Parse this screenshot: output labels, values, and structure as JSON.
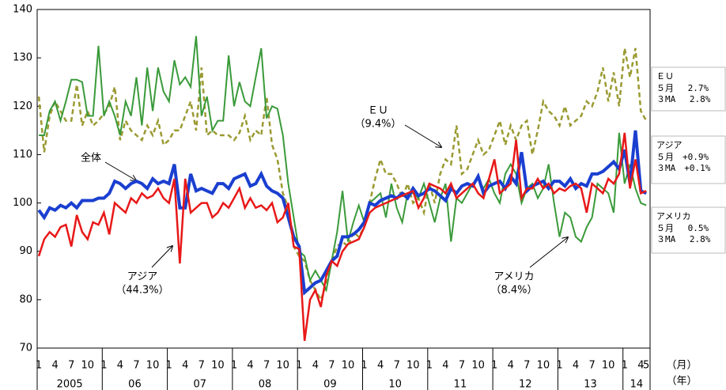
{
  "chart_data": {
    "type": "line",
    "categories": [
      "1",
      null,
      null,
      "4",
      null,
      null,
      "7",
      null,
      null,
      "10",
      null,
      null,
      "1",
      null,
      null,
      "4",
      null,
      null,
      "7",
      null,
      null,
      "10",
      null,
      null,
      "1",
      null,
      null,
      "4",
      null,
      null,
      "7",
      null,
      null,
      "10",
      null,
      null,
      "1",
      null,
      null,
      "4",
      null,
      null,
      "7",
      null,
      null,
      "10",
      null,
      null,
      "1",
      null,
      null,
      "4",
      null,
      null,
      "7",
      null,
      null,
      "10",
      null,
      null,
      "1",
      null,
      null,
      "4",
      null,
      null,
      "7",
      null,
      null,
      "10",
      null,
      null,
      "1",
      null,
      null,
      "4",
      null,
      null,
      "7",
      null,
      null,
      "10",
      null,
      null,
      "1",
      null,
      null,
      "4",
      null,
      null,
      "7",
      null,
      null,
      "10",
      null,
      null,
      "1",
      null,
      null,
      "4",
      null,
      null,
      "7",
      null,
      null,
      "10",
      null,
      null,
      "1",
      null,
      null,
      "4",
      "5"
    ],
    "years": [
      {
        "label": "2005",
        "months": 12
      },
      {
        "label": "06",
        "months": 12
      },
      {
        "label": "07",
        "months": 12
      },
      {
        "label": "08",
        "months": 12
      },
      {
        "label": "09",
        "months": 12
      },
      {
        "label": "10",
        "months": 12
      },
      {
        "label": "11",
        "months": 12
      },
      {
        "label": "12",
        "months": 12
      },
      {
        "label": "13",
        "months": 12
      },
      {
        "label": "14",
        "months": 5
      }
    ],
    "x_unit_month": "（月）",
    "x_unit_year": "（年）",
    "ylim": [
      70,
      140
    ],
    "yticks": [
      70,
      80,
      90,
      100,
      110,
      120,
      130,
      140
    ],
    "series": [
      {
        "name": "ＥＵ",
        "color": "#9a9a32",
        "dash": true,
        "width": 2.5,
        "values": [
          122,
          110.5,
          118,
          121,
          119,
          117,
          117,
          124.5,
          116,
          119,
          116,
          117,
          118.5,
          120,
          124,
          113,
          117,
          115,
          114,
          113,
          116,
          114,
          117,
          112,
          113,
          115,
          115,
          118,
          121,
          115,
          128,
          114,
          115,
          114,
          114,
          114,
          113,
          114.5,
          118,
          113,
          115,
          114,
          122,
          112,
          109,
          102,
          99,
          91,
          89,
          88,
          84,
          82,
          80,
          83,
          88,
          91,
          92,
          91,
          94,
          93,
          95,
          100,
          105,
          109,
          106,
          106,
          104,
          101,
          104,
          100,
          101,
          98,
          104,
          100,
          106,
          109,
          108,
          116,
          106,
          107,
          110,
          113,
          110,
          111,
          114,
          117,
          112,
          116,
          113,
          116,
          117,
          110,
          115,
          121,
          119,
          118,
          116,
          120,
          116,
          117,
          118,
          121,
          120,
          123,
          128,
          121,
          127,
          120,
          132,
          126,
          132,
          119,
          117
        ]
      },
      {
        "name": "アメリカ",
        "color": "#3a9a3a",
        "dash": false,
        "width": 2,
        "values": [
          114,
          114,
          119,
          121,
          117,
          121,
          125.5,
          125.5,
          125,
          118,
          118,
          132.5,
          118,
          121,
          118,
          114,
          121,
          118,
          126,
          116,
          128,
          119,
          128,
          123,
          121,
          129.5,
          124.5,
          126,
          124,
          134.5,
          118,
          122,
          115,
          117,
          117,
          130.5,
          120,
          125,
          121,
          120,
          126,
          132,
          117.5,
          120,
          119.5,
          114,
          104,
          97,
          90,
          89,
          84,
          86,
          84,
          82,
          88,
          94,
          102.5,
          92,
          96,
          99.5,
          96,
          100,
          101,
          102,
          97,
          104,
          99,
          96,
          102,
          102,
          101,
          104,
          100,
          96,
          101,
          104,
          92,
          101,
          100,
          102,
          104,
          105,
          103,
          105,
          102,
          100,
          106,
          108,
          106,
          100,
          103,
          104,
          101,
          103,
          108,
          100,
          93,
          98,
          97,
          93,
          92,
          95,
          97,
          104,
          103,
          102,
          98,
          114.5,
          104,
          108,
          103,
          100,
          99.5
        ]
      },
      {
        "name": "全体",
        "color": "#1a3fd0",
        "dash": false,
        "width": 4,
        "values": [
          98.5,
          97,
          99,
          98.5,
          99.5,
          99,
          100,
          99,
          100.5,
          100.5,
          100.5,
          101,
          101,
          102,
          104.5,
          104,
          103,
          104,
          104.5,
          104,
          103,
          105,
          104,
          104.5,
          104,
          108,
          99,
          99,
          106,
          102.5,
          103,
          102.5,
          102,
          104,
          104,
          103,
          105,
          105.5,
          106,
          103.5,
          104,
          106,
          103.5,
          102.5,
          102,
          101,
          97,
          93,
          91,
          81.5,
          82.5,
          83.5,
          84,
          86,
          88,
          89,
          93,
          93,
          93.5,
          94.5,
          96,
          100,
          99.5,
          100.5,
          101,
          101.5,
          101,
          102,
          101,
          103,
          101.5,
          102,
          103,
          102.5,
          101.5,
          100.5,
          103,
          102,
          103.5,
          104,
          103.5,
          105.5,
          102,
          103.5,
          104,
          104.5,
          103,
          105.5,
          104,
          110.5,
          102.5,
          103.5,
          104,
          104.5,
          103,
          104.5,
          104.5,
          103.5,
          105,
          103,
          104,
          103.5,
          106,
          106,
          106.5,
          107.5,
          108.5,
          107,
          111,
          104,
          115,
          102.5,
          102
        ]
      },
      {
        "name": "アジア",
        "color": "#e81818",
        "dash": false,
        "width": 2.5,
        "values": [
          89,
          92.5,
          94,
          93,
          95,
          95.5,
          91,
          97.5,
          94,
          92.5,
          96,
          95.5,
          98,
          93.5,
          100,
          99,
          98,
          101,
          100,
          102,
          101,
          101.5,
          103,
          101,
          100,
          105,
          87.5,
          105,
          98,
          99,
          100,
          100,
          97,
          98,
          100,
          99,
          101,
          103,
          99,
          101,
          99,
          99.5,
          98.5,
          100,
          96,
          97,
          100,
          91,
          90.5,
          71.5,
          80,
          82,
          78.5,
          85,
          88,
          87,
          90,
          91.5,
          92,
          92.5,
          95,
          98,
          99,
          99.5,
          100,
          100.5,
          101,
          101.5,
          102,
          102.5,
          99,
          101,
          104,
          103.5,
          103,
          102,
          104,
          101,
          102,
          103,
          104,
          102,
          101,
          105,
          109,
          102,
          103,
          104,
          113,
          101,
          103,
          103,
          105,
          103,
          104,
          102,
          103,
          102.5,
          103.5,
          104,
          103,
          98,
          104,
          103,
          102,
          105,
          104,
          106,
          114.5,
          103,
          109,
          102,
          102.5
        ]
      }
    ],
    "shares": [
      "（9.4%）",
      "（8.4%）",
      null,
      "（44.3%）"
    ],
    "notes": [
      {
        "title": "ＥＵ",
        "lines": [
          "５月　  2.7%",
          "３MA　  2.8%"
        ]
      },
      {
        "title": "アジア",
        "lines": [
          "５月　+0.9%",
          "３MA　+0.1%"
        ]
      },
      {
        "title": "アメリカ",
        "lines": [
          "５月　  0.5%",
          "３MA　  2.8%"
        ]
      }
    ]
  }
}
